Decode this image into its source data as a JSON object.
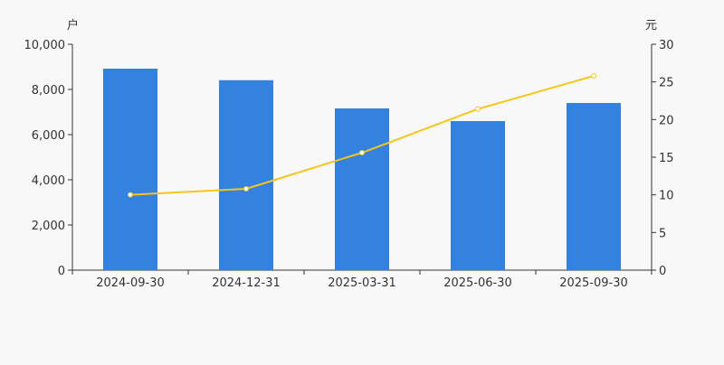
{
  "chart_data": {
    "type": "bar",
    "categories": [
      "2024-09-30",
      "2024-12-31",
      "2025-03-31",
      "2025-06-30",
      "2025-09-30"
    ],
    "left_axis": {
      "unit": "户",
      "ylim": [
        0,
        10000
      ],
      "ticks": [
        "0",
        "2,000",
        "4,000",
        "6,000",
        "8,000",
        "10,000"
      ],
      "tick_values": [
        0,
        2000,
        4000,
        6000,
        8000,
        10000
      ]
    },
    "right_axis": {
      "unit": "元",
      "ylim": [
        0,
        30
      ],
      "ticks": [
        "0",
        "5",
        "10",
        "15",
        "20",
        "25",
        "30"
      ],
      "tick_values": [
        0,
        5,
        10,
        15,
        20,
        25,
        30
      ]
    },
    "series": [
      {
        "type": "bar",
        "axis": "left",
        "color": "#3482e0",
        "values": [
          8920,
          8410,
          7160,
          6600,
          7400
        ]
      },
      {
        "type": "line",
        "axis": "right",
        "color": "#f5c518",
        "values": [
          10.0,
          10.8,
          15.6,
          21.4,
          25.8
        ]
      }
    ],
    "grid": false,
    "legend": "none"
  }
}
